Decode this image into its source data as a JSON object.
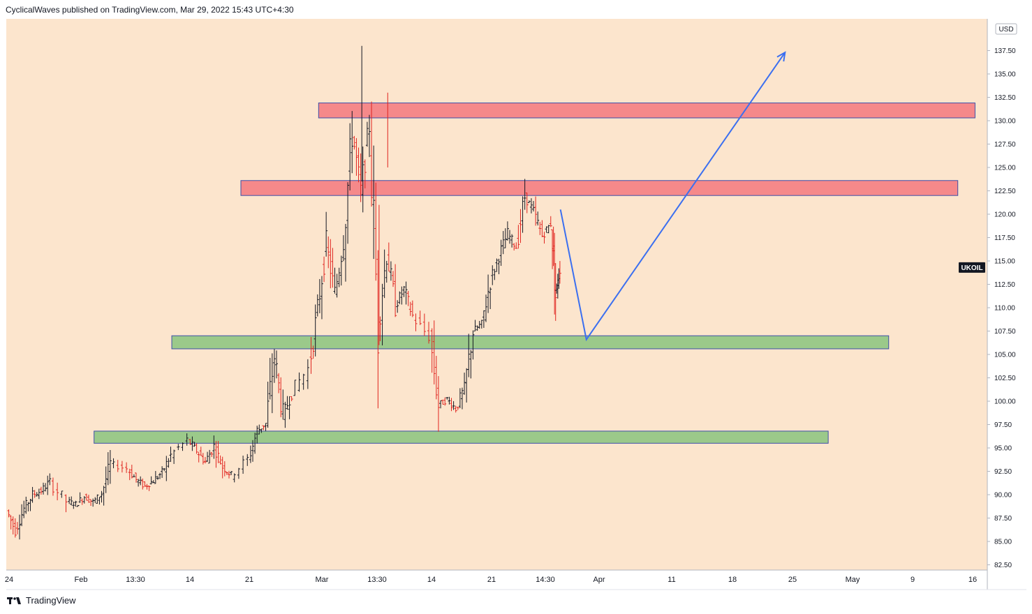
{
  "header": {
    "text": "CyclicalWaves published on TradingView.com, Mar 29, 2022 15:43 UTC+4:30"
  },
  "footer": {
    "brand": "TradingView"
  },
  "chart_data": {
    "type": "candlestick",
    "symbol_label": "UKOIL",
    "last_price": 114.3,
    "currency": "USD",
    "ylim": [
      81.5,
      140.5
    ],
    "y_ticks": [
      "137.50",
      "135.00",
      "132.50",
      "130.00",
      "127.50",
      "125.00",
      "122.50",
      "120.00",
      "117.50",
      "115.00",
      "112.50",
      "110.00",
      "107.50",
      "105.00",
      "102.50",
      "100.00",
      "97.50",
      "95.00",
      "92.50",
      "90.00",
      "87.50",
      "85.00",
      "82.50"
    ],
    "x_ticks": [
      "24",
      "Feb",
      "13:30",
      "14",
      "21",
      "Mar",
      "13:30",
      "14",
      "21",
      "14:30",
      "Apr",
      "11",
      "18",
      "25",
      "May",
      "9",
      "16"
    ],
    "zones": [
      {
        "kind": "resistance",
        "from": "Mar 1",
        "to": "May 16",
        "low": 130.3,
        "high": 131.9,
        "color": "#f5898a"
      },
      {
        "kind": "resistance",
        "from": "Feb 20",
        "to": "May 14",
        "low": 122.0,
        "high": 123.6,
        "color": "#f5898a"
      },
      {
        "kind": "support",
        "from": "Feb 12",
        "to": "May 6",
        "low": 105.6,
        "high": 107.0,
        "color": "#9bc98a"
      },
      {
        "kind": "support",
        "from": "Feb 3",
        "to": "Apr 29",
        "low": 95.5,
        "high": 96.8,
        "color": "#9bc98a"
      }
    ],
    "projection": [
      {
        "date": "Mar 29",
        "value": 120.5
      },
      {
        "date": "Apr 1",
        "value": 106.6
      },
      {
        "date": "Apr 24",
        "value": 137.3
      }
    ],
    "series": [
      {
        "date": "Jan 24",
        "value": 88.3
      },
      {
        "date": "Jan 25",
        "value": 86.2
      },
      {
        "date": "Jan 26",
        "value": 88.5
      },
      {
        "date": "Jan 27",
        "value": 90.0
      },
      {
        "date": "Jan 28",
        "value": 90.4
      },
      {
        "date": "Jan 29",
        "value": 91.4
      },
      {
        "date": "Jan 31",
        "value": 89.3
      },
      {
        "date": "Feb 1",
        "value": 89.0
      },
      {
        "date": "Feb 2",
        "value": 89.8
      },
      {
        "date": "Feb 3",
        "value": 89.2
      },
      {
        "date": "Feb 4",
        "value": 90.1
      },
      {
        "date": "Feb 5",
        "value": 93.3
      },
      {
        "date": "Feb 7",
        "value": 92.8
      },
      {
        "date": "Feb 8",
        "value": 91.6
      },
      {
        "date": "Feb 9",
        "value": 90.9
      },
      {
        "date": "Feb 10",
        "value": 91.5
      },
      {
        "date": "Feb 11",
        "value": 92.4
      },
      {
        "date": "Feb 12",
        "value": 94.2
      },
      {
        "date": "Feb 14",
        "value": 95.8
      },
      {
        "date": "Feb 15",
        "value": 94.7
      },
      {
        "date": "Feb 16",
        "value": 93.5
      },
      {
        "date": "Feb 17",
        "value": 95.2
      },
      {
        "date": "Feb 18",
        "value": 93.0
      },
      {
        "date": "Feb 19",
        "value": 92.1
      },
      {
        "date": "Feb 21",
        "value": 93.8
      },
      {
        "date": "Feb 22",
        "value": 96.8
      },
      {
        "date": "Feb 23",
        "value": 97.6
      },
      {
        "date": "Feb 24",
        "value": 104.8
      },
      {
        "date": "Feb 25",
        "value": 98.4
      },
      {
        "date": "Feb 26",
        "value": 100.9
      },
      {
        "date": "Feb 28",
        "value": 103.5
      },
      {
        "date": "Mar 1",
        "value": 109.8
      },
      {
        "date": "Mar 2",
        "value": 116.8
      },
      {
        "date": "Mar 3",
        "value": 111.5
      },
      {
        "date": "Mar 4",
        "value": 117.2
      },
      {
        "date": "Mar 5",
        "value": 128.9
      },
      {
        "date": "Mar 6",
        "value": 122.4
      },
      {
        "date": "Mar 7",
        "value": 129.5
      },
      {
        "date": "Mar 8",
        "value": 107.9
      },
      {
        "date": "Mar 9",
        "value": 115.9
      },
      {
        "date": "Mar 10",
        "value": 110.2
      },
      {
        "date": "Mar 11",
        "value": 112.0
      },
      {
        "date": "Mar 12",
        "value": 109.1
      },
      {
        "date": "Mar 14",
        "value": 106.9
      },
      {
        "date": "Mar 15",
        "value": 99.6
      },
      {
        "date": "Mar 16",
        "value": 100.2
      },
      {
        "date": "Mar 17",
        "value": 99.2
      },
      {
        "date": "Mar 18",
        "value": 101.4
      },
      {
        "date": "Mar 19",
        "value": 107.5
      },
      {
        "date": "Mar 20",
        "value": 108.3
      },
      {
        "date": "Mar 21",
        "value": 112.9
      },
      {
        "date": "Mar 22",
        "value": 115.6
      },
      {
        "date": "Mar 23",
        "value": 117.9
      },
      {
        "date": "Mar 24",
        "value": 116.5
      },
      {
        "date": "Mar 25",
        "value": 121.9
      },
      {
        "date": "Mar 26",
        "value": 120.3
      },
      {
        "date": "Mar 27",
        "value": 117.7
      },
      {
        "date": "Mar 28",
        "value": 119.0
      },
      {
        "date": "Mar 28b",
        "value": 111.2
      },
      {
        "date": "Mar 29",
        "value": 114.3
      }
    ]
  }
}
